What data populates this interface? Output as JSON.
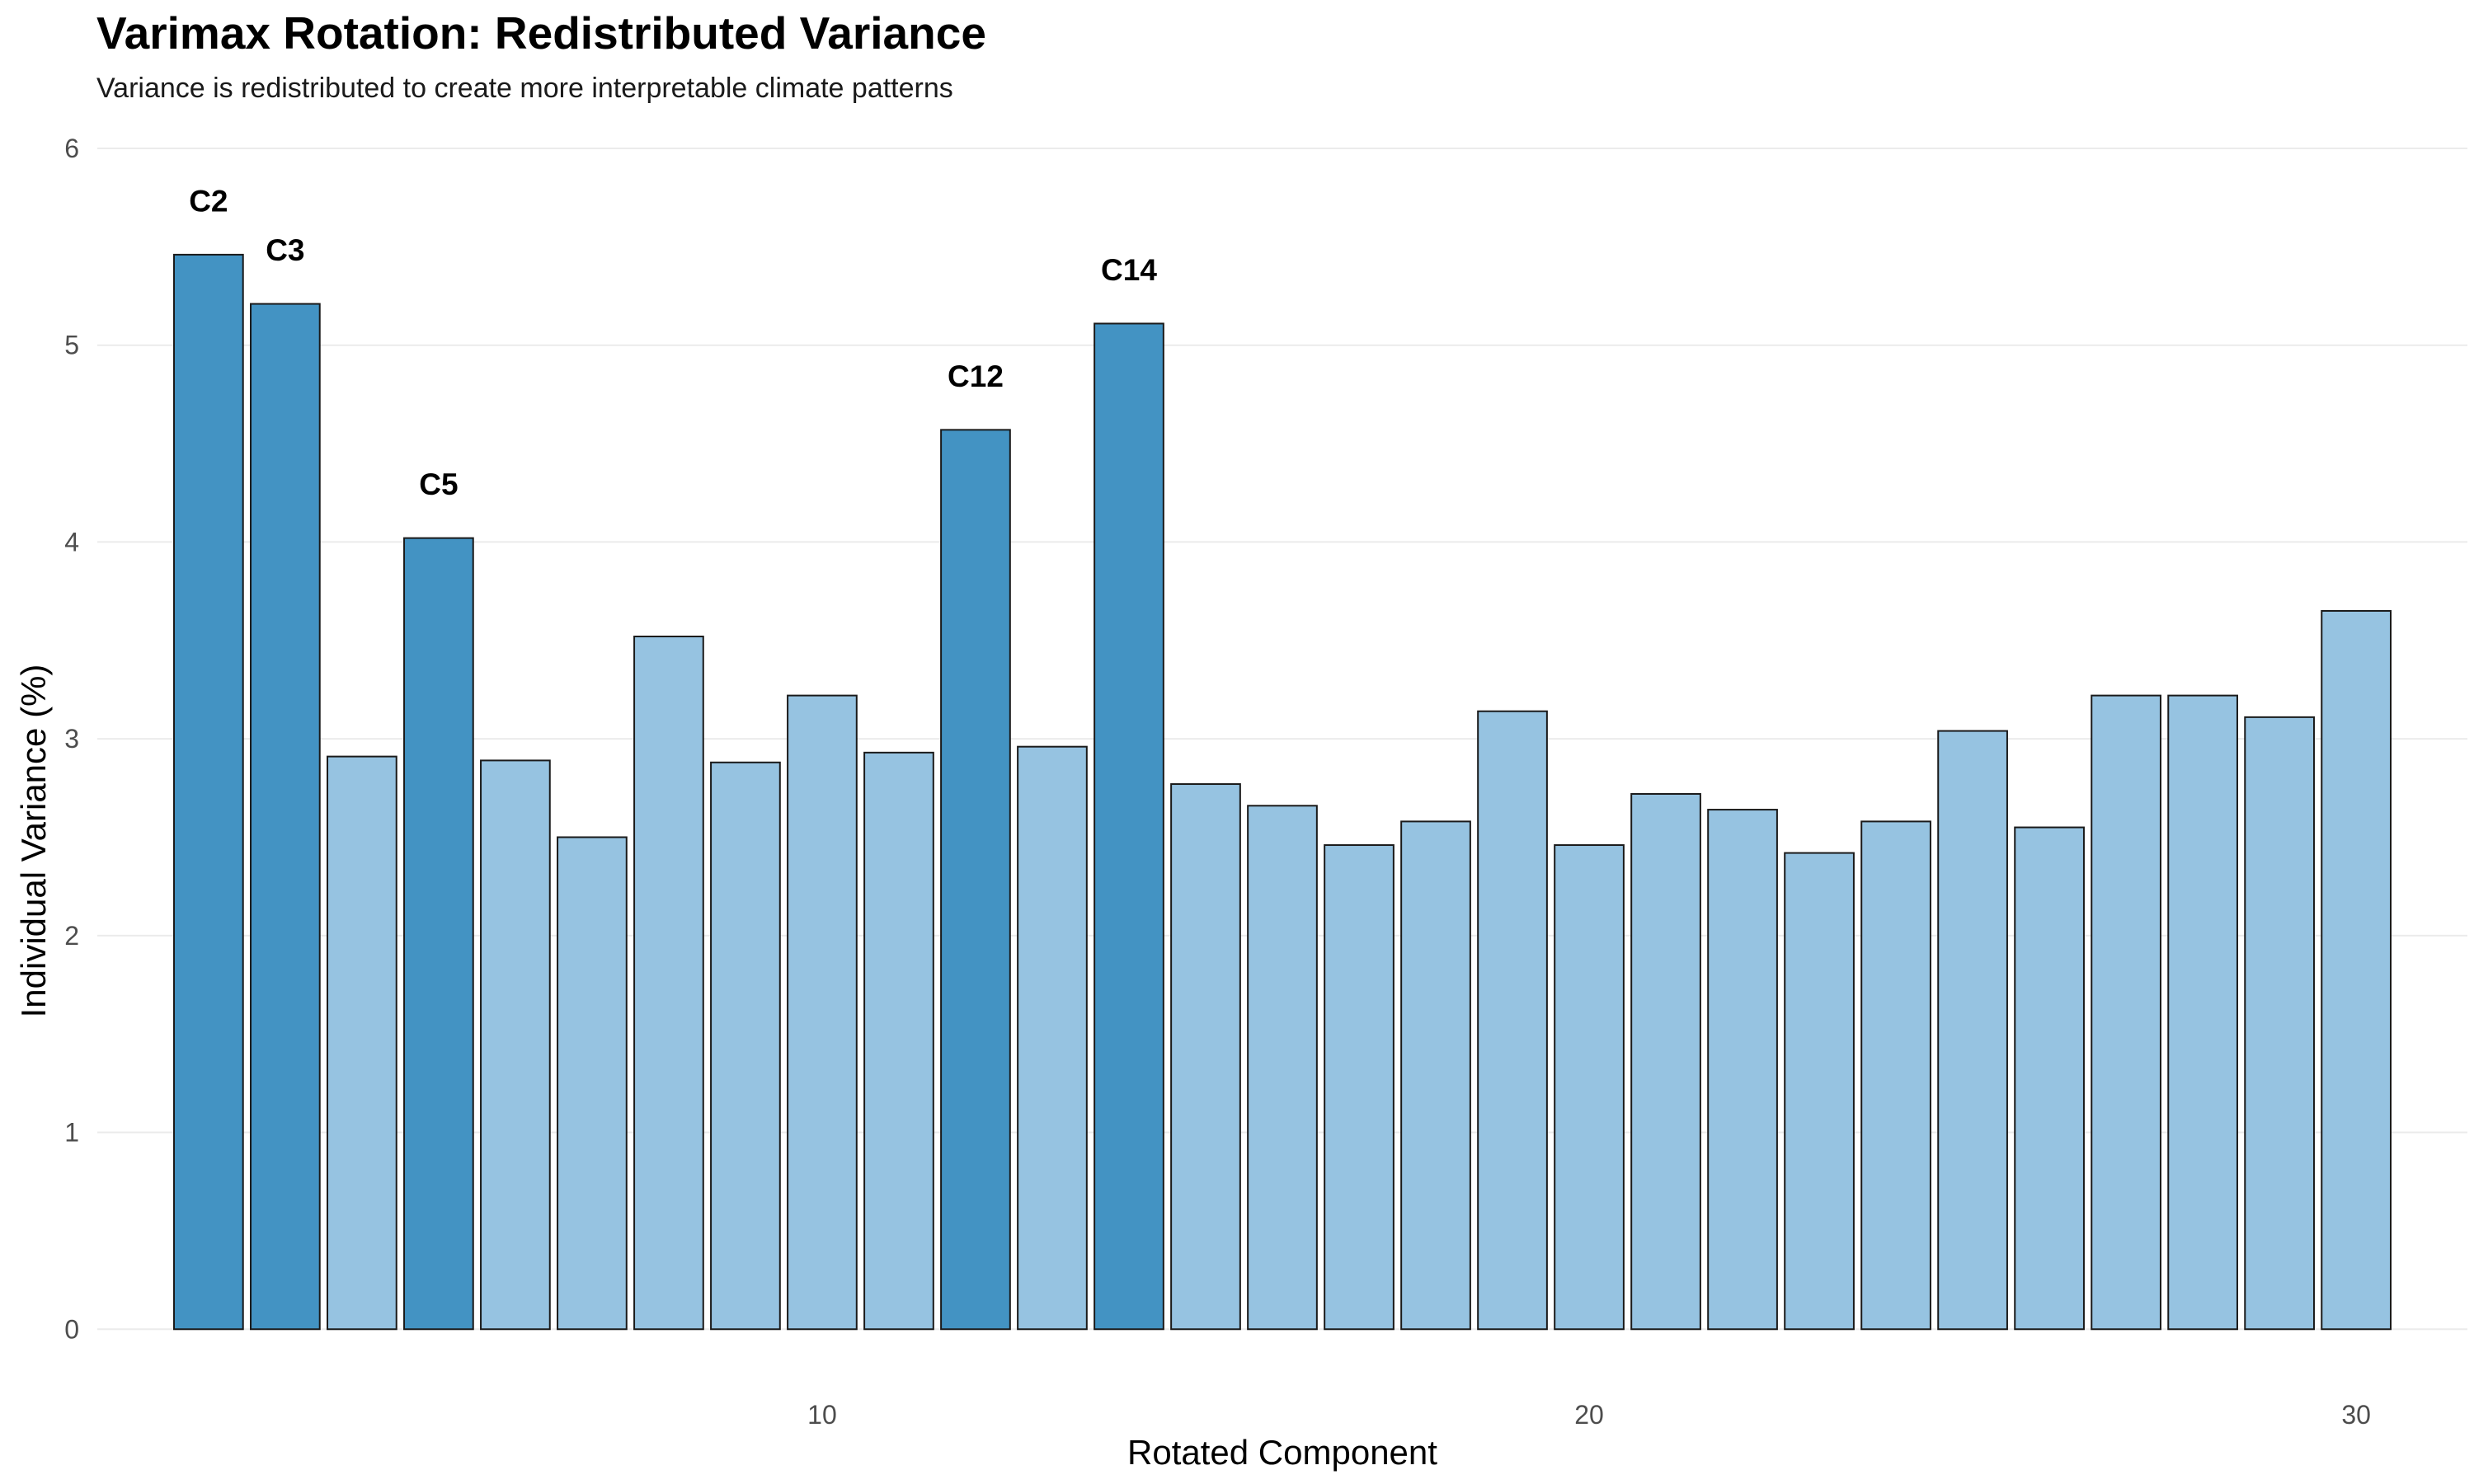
{
  "chart_data": {
    "type": "bar",
    "title": "Varimax Rotation: Redistributed Variance",
    "subtitle": "Variance is redistributed to create more interpretable climate patterns",
    "xlabel": "Rotated Component",
    "ylabel": "Individual Variance (%)",
    "x": [
      2,
      3,
      4,
      5,
      6,
      7,
      8,
      9,
      10,
      11,
      12,
      13,
      14,
      15,
      16,
      17,
      18,
      19,
      20,
      21,
      22,
      23,
      24,
      25,
      26,
      27,
      28,
      29,
      30
    ],
    "values": [
      5.46,
      5.21,
      2.91,
      4.02,
      2.89,
      2.5,
      3.52,
      2.88,
      3.22,
      2.93,
      4.57,
      2.96,
      5.11,
      2.77,
      2.66,
      2.46,
      2.58,
      3.14,
      2.46,
      2.72,
      2.64,
      2.42,
      2.58,
      3.04,
      2.55,
      3.22,
      3.22,
      3.11,
      3.65
    ],
    "highlighted": [
      true,
      true,
      false,
      true,
      false,
      false,
      false,
      false,
      false,
      false,
      true,
      false,
      true,
      false,
      false,
      false,
      false,
      false,
      false,
      false,
      false,
      false,
      false,
      false,
      false,
      false,
      false,
      false,
      false
    ],
    "bar_labels": [
      "C2",
      "C3",
      "",
      "C5",
      "",
      "",
      "",
      "",
      "",
      "",
      "C12",
      "",
      "C14",
      "",
      "",
      "",
      "",
      "",
      "",
      "",
      "",
      "",
      "",
      "",
      "",
      "",
      "",
      "",
      ""
    ],
    "xlim": [
      0.55,
      31.45
    ],
    "ylim": [
      -0.2,
      6.0
    ],
    "x_ticks": [
      10,
      20,
      30
    ],
    "y_ticks": [
      0,
      1,
      2,
      3,
      4,
      5,
      6
    ],
    "grid": true,
    "legend": "none",
    "colors": {
      "highlight": "#4393C3",
      "normal": "#96C3E1",
      "bar_outline": "#1a1a1a",
      "grid": "#ebebeb"
    }
  }
}
